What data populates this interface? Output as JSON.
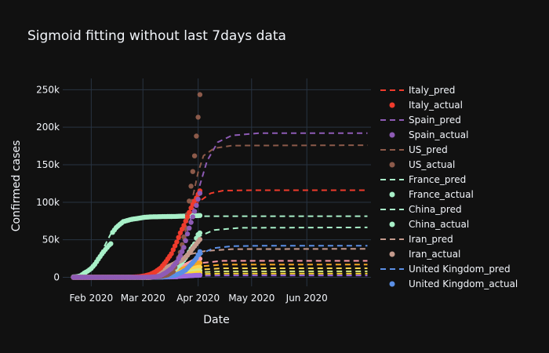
{
  "chart_data": {
    "type": "line",
    "title": "Sigmoid fitting without last 7days data",
    "xlabel": "Date",
    "ylabel": "Confirmed cases",
    "x_range": [
      "2020-01-16",
      "2020-07-07"
    ],
    "ylim": [
      -12000,
      265000
    ],
    "x_ticks": [
      {
        "date": "2020-02-01",
        "label": "Feb 2020"
      },
      {
        "date": "2020-03-01",
        "label": "Mar 2020"
      },
      {
        "date": "2020-04-01",
        "label": "Apr 2020"
      },
      {
        "date": "2020-05-01",
        "label": "May 2020"
      },
      {
        "date": "2020-06-01",
        "label": "Jun 2020"
      }
    ],
    "y_ticks": [
      {
        "value": 0,
        "label": "0"
      },
      {
        "value": 50000,
        "label": "50k"
      },
      {
        "value": 100000,
        "label": "100k"
      },
      {
        "value": 150000,
        "label": "150k"
      },
      {
        "value": 200000,
        "label": "200k"
      },
      {
        "value": 250000,
        "label": "250k"
      }
    ],
    "grid": true,
    "legend_position": "right",
    "background": "#111111",
    "colors": {
      "Italy": "#ef3b2c",
      "Spain": "#8e5bb5",
      "US": "#8c5a4a",
      "France": "#a8f0c8",
      "China": "#a8f0c8",
      "Iran": "#c49a8c",
      "United Kingdom": "#5b8fe6"
    },
    "series": [
      {
        "name": "Italy_pred",
        "kind": "pred",
        "color": "#ef3b2c",
        "points": [
          [
            "2020-01-22",
            0
          ],
          [
            "2020-02-20",
            0
          ],
          [
            "2020-03-01",
            1500
          ],
          [
            "2020-03-10",
            10000
          ],
          [
            "2020-03-18",
            35000
          ],
          [
            "2020-03-25",
            72000
          ],
          [
            "2020-04-01",
            100000
          ],
          [
            "2020-04-08",
            112000
          ],
          [
            "2020-04-15",
            115500
          ],
          [
            "2020-05-01",
            116000
          ],
          [
            "2020-07-05",
            116000
          ]
        ]
      },
      {
        "name": "Italy_actual",
        "kind": "actual",
        "color": "#ef3b2c",
        "points": [
          [
            "2020-01-22",
            0
          ],
          [
            "2020-02-01",
            0
          ],
          [
            "2020-02-10",
            0
          ],
          [
            "2020-02-20",
            0
          ],
          [
            "2020-02-24",
            230
          ],
          [
            "2020-02-28",
            890
          ],
          [
            "2020-03-02",
            2036
          ],
          [
            "2020-03-05",
            3858
          ],
          [
            "2020-03-08",
            7375
          ],
          [
            "2020-03-11",
            12462
          ],
          [
            "2020-03-14",
            21157
          ],
          [
            "2020-03-17",
            31506
          ],
          [
            "2020-03-20",
            47021
          ],
          [
            "2020-03-22",
            59138
          ],
          [
            "2020-03-24",
            69176
          ],
          [
            "2020-03-26",
            80589
          ],
          [
            "2020-03-28",
            92472
          ],
          [
            "2020-03-30",
            101739
          ],
          [
            "2020-03-31",
            105792
          ],
          [
            "2020-04-01",
            110574
          ],
          [
            "2020-04-02",
            115242
          ]
        ]
      },
      {
        "name": "Spain_pred",
        "kind": "pred",
        "color": "#8e5bb5",
        "points": [
          [
            "2020-01-22",
            0
          ],
          [
            "2020-03-01",
            0
          ],
          [
            "2020-03-12",
            3000
          ],
          [
            "2020-03-20",
            20000
          ],
          [
            "2020-03-27",
            70000
          ],
          [
            "2020-04-01",
            115000
          ],
          [
            "2020-04-06",
            155000
          ],
          [
            "2020-04-12",
            180000
          ],
          [
            "2020-04-20",
            189000
          ],
          [
            "2020-05-05",
            192000
          ],
          [
            "2020-07-05",
            192000
          ]
        ]
      },
      {
        "name": "Spain_actual",
        "kind": "actual",
        "color": "#8e5bb5",
        "points": [
          [
            "2020-01-22",
            0
          ],
          [
            "2020-02-01",
            0
          ],
          [
            "2020-02-10",
            0
          ],
          [
            "2020-02-20",
            0
          ],
          [
            "2020-03-01",
            84
          ],
          [
            "2020-03-05",
            282
          ],
          [
            "2020-03-08",
            673
          ],
          [
            "2020-03-11",
            2277
          ],
          [
            "2020-03-14",
            6391
          ],
          [
            "2020-03-17",
            11748
          ],
          [
            "2020-03-20",
            20410
          ],
          [
            "2020-03-22",
            28768
          ],
          [
            "2020-03-24",
            39885
          ],
          [
            "2020-03-26",
            57786
          ],
          [
            "2020-03-28",
            73235
          ],
          [
            "2020-03-30",
            87956
          ],
          [
            "2020-03-31",
            95923
          ],
          [
            "2020-04-01",
            104118
          ],
          [
            "2020-04-02",
            112065
          ]
        ]
      },
      {
        "name": "US_pred",
        "kind": "pred",
        "color": "#8c5a4a",
        "points": [
          [
            "2020-01-22",
            0
          ],
          [
            "2020-03-05",
            0
          ],
          [
            "2020-03-15",
            4000
          ],
          [
            "2020-03-22",
            30000
          ],
          [
            "2020-03-27",
            85000
          ],
          [
            "2020-04-01",
            140000
          ],
          [
            "2020-04-04",
            162000
          ],
          [
            "2020-04-10",
            172000
          ],
          [
            "2020-04-20",
            175500
          ],
          [
            "2020-07-05",
            176000
          ]
        ]
      },
      {
        "name": "US_actual",
        "kind": "actual",
        "color": "#8c5a4a",
        "points": [
          [
            "2020-01-22",
            1
          ],
          [
            "2020-02-01",
            8
          ],
          [
            "2020-02-15",
            15
          ],
          [
            "2020-03-01",
            75
          ],
          [
            "2020-03-08",
            537
          ],
          [
            "2020-03-12",
            1663
          ],
          [
            "2020-03-15",
            3499
          ],
          [
            "2020-03-18",
            7786
          ],
          [
            "2020-03-20",
            19100
          ],
          [
            "2020-03-22",
            33276
          ],
          [
            "2020-03-24",
            53740
          ],
          [
            "2020-03-25",
            65778
          ],
          [
            "2020-03-26",
            83836
          ],
          [
            "2020-03-27",
            101657
          ],
          [
            "2020-03-28",
            121478
          ],
          [
            "2020-03-29",
            140886
          ],
          [
            "2020-03-30",
            161807
          ],
          [
            "2020-03-31",
            188172
          ],
          [
            "2020-04-01",
            213372
          ],
          [
            "2020-04-02",
            243453
          ]
        ]
      },
      {
        "name": "France_pred",
        "kind": "pred",
        "color": "#a8f0c8",
        "points": [
          [
            "2020-01-22",
            0
          ],
          [
            "2020-03-05",
            0
          ],
          [
            "2020-03-15",
            5000
          ],
          [
            "2020-03-22",
            18000
          ],
          [
            "2020-03-28",
            40000
          ],
          [
            "2020-04-02",
            55000
          ],
          [
            "2020-04-10",
            63000
          ],
          [
            "2020-04-25",
            66000
          ],
          [
            "2020-07-05",
            66500
          ]
        ]
      },
      {
        "name": "France_actual",
        "kind": "actual",
        "color": "#a8f0c8",
        "points": [
          [
            "2020-01-22",
            0
          ],
          [
            "2020-02-01",
            6
          ],
          [
            "2020-02-15",
            12
          ],
          [
            "2020-03-01",
            130
          ],
          [
            "2020-03-05",
            423
          ],
          [
            "2020-03-09",
            1209
          ],
          [
            "2020-03-13",
            3661
          ],
          [
            "2020-03-17",
            7699
          ],
          [
            "2020-03-20",
            12612
          ],
          [
            "2020-03-23",
            20123
          ],
          [
            "2020-03-26",
            29551
          ],
          [
            "2020-03-28",
            38105
          ],
          [
            "2020-03-30",
            44550
          ],
          [
            "2020-03-31",
            52128
          ],
          [
            "2020-04-01",
            56989
          ],
          [
            "2020-04-02",
            59105
          ]
        ]
      },
      {
        "name": "China_pred",
        "kind": "pred",
        "color": "#a8f0c8",
        "points": [
          [
            "2020-01-22",
            0
          ],
          [
            "2020-01-28",
            2000
          ],
          [
            "2020-02-02",
            13000
          ],
          [
            "2020-02-07",
            35000
          ],
          [
            "2020-02-12",
            58000
          ],
          [
            "2020-02-17",
            71000
          ],
          [
            "2020-02-24",
            77500
          ],
          [
            "2020-03-05",
            80500
          ],
          [
            "2020-03-20",
            81200
          ],
          [
            "2020-04-02",
            81500
          ],
          [
            "2020-07-05",
            81500
          ]
        ]
      },
      {
        "name": "China_actual",
        "kind": "actual",
        "color": "#a8f0c8",
        "points": [
          [
            "2020-01-22",
            548
          ],
          [
            "2020-01-24",
            941
          ],
          [
            "2020-01-26",
            2116
          ],
          [
            "2020-01-28",
            5509
          ],
          [
            "2020-01-30",
            8234
          ],
          [
            "2020-02-01",
            11821
          ],
          [
            "2020-02-03",
            17238
          ],
          [
            "2020-02-05",
            24324
          ],
          [
            "2020-02-07",
            31161
          ],
          [
            "2020-02-09",
            37121
          ],
          [
            "2020-02-11",
            42762
          ],
          [
            "2020-02-12",
            44802
          ],
          [
            "2020-02-13",
            59895
          ],
          [
            "2020-02-15",
            66316
          ],
          [
            "2020-02-17",
            70446
          ],
          [
            "2020-02-19",
            74185
          ],
          [
            "2020-02-21",
            75550
          ],
          [
            "2020-02-23",
            76936
          ],
          [
            "2020-02-25",
            77754
          ],
          [
            "2020-02-28",
            78824
          ],
          [
            "2020-03-02",
            80026
          ],
          [
            "2020-03-06",
            80651
          ],
          [
            "2020-03-10",
            80778
          ],
          [
            "2020-03-14",
            80977
          ],
          [
            "2020-03-18",
            81102
          ],
          [
            "2020-03-22",
            81397
          ],
          [
            "2020-03-26",
            81661
          ],
          [
            "2020-03-29",
            82122
          ],
          [
            "2020-04-01",
            82279
          ],
          [
            "2020-04-02",
            82361
          ]
        ]
      },
      {
        "name": "Iran_pred",
        "kind": "pred",
        "color": "#c49a8c",
        "points": [
          [
            "2020-01-22",
            0
          ],
          [
            "2020-02-20",
            0
          ],
          [
            "2020-03-01",
            2000
          ],
          [
            "2020-03-10",
            10000
          ],
          [
            "2020-03-18",
            20000
          ],
          [
            "2020-03-26",
            30000
          ],
          [
            "2020-04-05",
            35000
          ],
          [
            "2020-04-20",
            37500
          ],
          [
            "2020-07-05",
            38000
          ]
        ]
      },
      {
        "name": "Iran_actual",
        "kind": "actual",
        "color": "#c49a8c",
        "points": [
          [
            "2020-01-22",
            0
          ],
          [
            "2020-02-10",
            0
          ],
          [
            "2020-02-20",
            5
          ],
          [
            "2020-02-25",
            95
          ],
          [
            "2020-02-28",
            388
          ],
          [
            "2020-03-02",
            1501
          ],
          [
            "2020-03-05",
            3513
          ],
          [
            "2020-03-08",
            6566
          ],
          [
            "2020-03-11",
            9000
          ],
          [
            "2020-03-14",
            12729
          ],
          [
            "2020-03-17",
            16169
          ],
          [
            "2020-03-20",
            19644
          ],
          [
            "2020-03-23",
            23049
          ],
          [
            "2020-03-26",
            29406
          ],
          [
            "2020-03-28",
            35408
          ],
          [
            "2020-03-30",
            41495
          ],
          [
            "2020-04-01",
            47593
          ],
          [
            "2020-04-02",
            50468
          ]
        ]
      },
      {
        "name": "United Kingdom_pred",
        "kind": "pred",
        "color": "#5b8fe6",
        "points": [
          [
            "2020-01-22",
            0
          ],
          [
            "2020-03-08",
            0
          ],
          [
            "2020-03-18",
            2500
          ],
          [
            "2020-03-24",
            9000
          ],
          [
            "2020-03-30",
            22000
          ],
          [
            "2020-04-04",
            33000
          ],
          [
            "2020-04-10",
            39000
          ],
          [
            "2020-04-20",
            41500
          ],
          [
            "2020-05-05",
            42000
          ],
          [
            "2020-07-05",
            42000
          ]
        ]
      },
      {
        "name": "United Kingdom_actual",
        "kind": "actual",
        "color": "#5b8fe6",
        "points": [
          [
            "2020-01-22",
            0
          ],
          [
            "2020-02-10",
            8
          ],
          [
            "2020-03-01",
            36
          ],
          [
            "2020-03-07",
            209
          ],
          [
            "2020-03-12",
            459
          ],
          [
            "2020-03-16",
            1551
          ],
          [
            "2020-03-19",
            2716
          ],
          [
            "2020-03-22",
            5741
          ],
          [
            "2020-03-25",
            9640
          ],
          [
            "2020-03-27",
            14745
          ],
          [
            "2020-03-29",
            19606
          ],
          [
            "2020-03-31",
            25481
          ],
          [
            "2020-04-01",
            29865
          ],
          [
            "2020-04-02",
            34173
          ]
        ]
      }
    ],
    "other_series_colors": [
      "#ff9da7",
      "#f5a623",
      "#ffd54f",
      "#d6e685",
      "#fdd835",
      "#9c6ade"
    ]
  }
}
